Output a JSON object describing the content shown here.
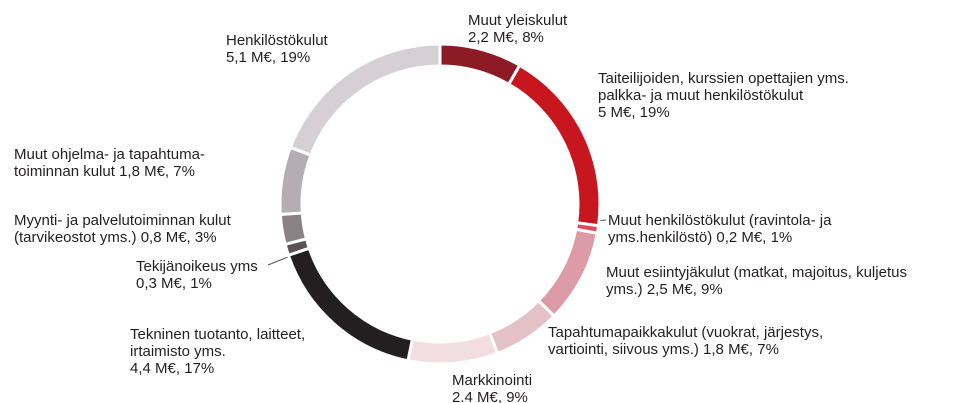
{
  "chart_data": {
    "type": "donut",
    "categories": [
      [
        "Muut yleiskulut"
      ],
      [
        "Taiteilijoiden, kurssien opettajien yms.",
        "palkka- ja muut henkilöstökulut"
      ],
      [
        "Muut henkilöstökulut (ravintola- ja",
        "yms.henkilöstö)"
      ],
      [
        "Muut esiintyjäkulut (matkat, majoitus, kuljetus",
        "yms.)"
      ],
      [
        "Tapahtumapaikkakulut (vuokrat, järjestys,",
        "vartiointi, siivous yms.)"
      ],
      [
        "Markkinointi"
      ],
      [
        "Tekninen tuotanto, laitteet,",
        "irtaimisto yms."
      ],
      [
        "Tekijänoikeus yms"
      ],
      [
        "Myynti- ja palvelutoiminnan kulut",
        "(tarvikeostot yms.)"
      ],
      [
        "Muut ohjelma- ja tapahtuma-",
        "toiminnan kulut"
      ],
      [
        "Henkilöstökulut"
      ]
    ],
    "values": [
      2.2,
      5,
      0.2,
      2.5,
      1.8,
      2.4,
      4.4,
      0.3,
      0.8,
      1.8,
      5.1
    ],
    "value_labels": [
      "2,2 M€, 8%",
      "5 M€, 19%",
      "0,2 M€, 1%",
      "2,5 M€, 9%",
      "1,8 M€, 7%",
      "2.4 M€, 9%",
      "4,4 M€, 17%",
      "0,3 M€, 1%",
      "0,8 M€, 3%",
      "1,8 M€, 7%",
      "5,1 M€, 19%"
    ],
    "colors": [
      "#8c1b25",
      "#c8161e",
      "#d94a5b",
      "#dc9ba6",
      "#e4c0c7",
      "#f2dde2",
      "#231f20",
      "#5a5356",
      "#8a8185",
      "#b4adb1",
      "#d6d0d4"
    ]
  }
}
